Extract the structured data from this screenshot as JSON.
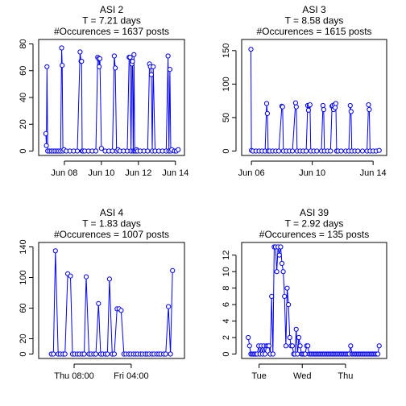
{
  "chart_data": [
    {
      "type": "line",
      "title_lines": [
        "ASI 2",
        "T =  7.21  days",
        "#Occurences =  1637  posts"
      ],
      "ylim": [
        0,
        80
      ],
      "y_ticks": [
        0,
        20,
        40,
        60,
        80
      ],
      "xlim": [
        6.85,
        14.25
      ],
      "x_ticks": [
        {
          "v": 8,
          "label": "Jun 08"
        },
        {
          "v": 10,
          "label": "Jun 10"
        },
        {
          "v": 12,
          "label": "Jun 12"
        },
        {
          "v": 14,
          "label": "Jun 14"
        }
      ],
      "series": [
        {
          "color": "#0000ff",
          "marker": "open-circle",
          "line": true,
          "x": [
            7.0,
            7.03,
            7.06,
            7.1,
            7.2,
            7.3,
            7.4,
            7.5,
            7.6,
            7.7,
            7.8,
            7.85,
            7.88,
            7.92,
            7.98,
            8.1,
            8.3,
            8.5,
            8.7,
            8.85,
            8.9,
            8.93,
            8.96,
            9.0,
            9.1,
            9.3,
            9.5,
            9.7,
            9.8,
            9.85,
            9.88,
            9.92,
            10.0,
            10.2,
            10.4,
            10.6,
            10.7,
            10.75,
            10.82,
            10.9,
            11.0,
            11.2,
            11.4,
            11.5,
            11.55,
            11.6,
            11.65,
            11.68,
            11.72,
            11.76,
            11.8,
            11.85,
            11.9,
            11.95,
            12.1,
            12.3,
            12.5,
            12.6,
            12.65,
            12.7,
            12.75,
            12.8,
            12.9,
            13.1,
            13.3,
            13.5,
            13.6,
            13.65,
            13.7,
            13.75,
            13.8,
            13.95,
            14.05,
            14.15
          ],
          "y": [
            13,
            4,
            63,
            0,
            0,
            0,
            0,
            0,
            0,
            0,
            0,
            77,
            64,
            0,
            1,
            0,
            0,
            0,
            0,
            74,
            67,
            67,
            0,
            0,
            0,
            0,
            0,
            0,
            70,
            69,
            63,
            69,
            2,
            0,
            0,
            0,
            71,
            62,
            0,
            1,
            0,
            0,
            0,
            70,
            70,
            0,
            65,
            67,
            0,
            72,
            0,
            0,
            1,
            0,
            0,
            0,
            0,
            65,
            63,
            57,
            0,
            63,
            0,
            0,
            0,
            0,
            71,
            0,
            61,
            0,
            1,
            0,
            0,
            1
          ]
        }
      ]
    },
    {
      "type": "line",
      "title_lines": [
        "ASI 3",
        "T =  8.58  days",
        "#Occurences =  1615  posts"
      ],
      "ylim": [
        0,
        160
      ],
      "y_ticks": [
        0,
        50,
        100,
        150
      ],
      "xlim": [
        5.65,
        14.6
      ],
      "x_ticks": [
        {
          "v": 6,
          "label": "Jun 06"
        },
        {
          "v": 10,
          "label": "Jun 10"
        },
        {
          "v": 14,
          "label": "Jun 14"
        }
      ],
      "series": [
        {
          "color": "#0000ff",
          "marker": "open-circle",
          "line": true,
          "x": [
            5.97,
            6.0,
            6.1,
            6.3,
            6.5,
            6.7,
            6.9,
            7.0,
            7.05,
            7.1,
            7.2,
            7.4,
            7.6,
            7.8,
            8.0,
            8.05,
            8.1,
            8.3,
            8.5,
            8.7,
            8.9,
            8.95,
            9.0,
            9.2,
            9.4,
            9.6,
            9.7,
            9.75,
            9.8,
            9.85,
            9.9,
            10.1,
            10.3,
            10.6,
            10.7,
            10.75,
            10.8,
            11.0,
            11.2,
            11.3,
            11.35,
            11.4,
            11.45,
            11.5,
            11.55,
            11.6,
            11.7,
            11.9,
            12.2,
            12.4,
            12.5,
            12.55,
            12.6,
            12.8,
            13.0,
            13.3,
            13.6,
            13.7,
            13.75,
            13.8,
            14.0,
            14.2,
            14.4
          ],
          "y": [
            152,
            1,
            0,
            0,
            0,
            0,
            0,
            71,
            56,
            0,
            0,
            0,
            0,
            0,
            67,
            66,
            0,
            0,
            0,
            0,
            72,
            66,
            0,
            0,
            0,
            0,
            68,
            61,
            68,
            69,
            0,
            0,
            0,
            0,
            68,
            62,
            0,
            0,
            0,
            67,
            68,
            62,
            69,
            65,
            71,
            0,
            0,
            0,
            0,
            0,
            68,
            59,
            0,
            0,
            0,
            0,
            0,
            69,
            62,
            0,
            0,
            0,
            1
          ]
        }
      ]
    },
    {
      "type": "line",
      "title_lines": [
        "ASI 4",
        "T =  1.83  days",
        "#Occurences =  1007  posts"
      ],
      "ylim": [
        0,
        140
      ],
      "y_ticks": [
        0,
        20,
        60,
        100,
        140
      ],
      "xlim": [
        -0.12,
        1.88
      ],
      "x_ticks": [
        {
          "v": 0.333,
          "label": "Thu 08:00"
        },
        {
          "v": 1.167,
          "label": "Fri 04:00"
        }
      ],
      "series": [
        {
          "color": "#0000ff",
          "marker": "open-circle",
          "line": true,
          "x": [
            0.0,
            0.03,
            0.06,
            0.1,
            0.13,
            0.17,
            0.2,
            0.24,
            0.28,
            0.31,
            0.34,
            0.38,
            0.41,
            0.45,
            0.48,
            0.51,
            0.55,
            0.58,
            0.62,
            0.65,
            0.69,
            0.72,
            0.75,
            0.79,
            0.82,
            0.85,
            0.89,
            0.92,
            0.96,
            0.99,
            1.02,
            1.06,
            1.09,
            1.13,
            1.16,
            1.2,
            1.23,
            1.26,
            1.3,
            1.33,
            1.37,
            1.4,
            1.43,
            1.47,
            1.5,
            1.54,
            1.57,
            1.6,
            1.64,
            1.67,
            1.71,
            1.74,
            1.77
          ],
          "y": [
            0,
            0,
            135,
            0,
            0,
            0,
            0,
            105,
            102,
            0,
            0,
            0,
            0,
            0,
            0,
            101,
            0,
            0,
            0,
            0,
            66,
            0,
            0,
            0,
            0,
            98,
            0,
            0,
            59,
            59,
            57,
            0,
            0,
            0,
            0,
            0,
            0,
            0,
            0,
            0,
            0,
            0,
            0,
            0,
            0,
            0,
            0,
            0,
            0,
            0,
            62,
            0,
            109
          ]
        }
      ]
    },
    {
      "type": "line",
      "title_lines": [
        "ASI 39",
        "T =  2.92  days",
        "#Occurences =  135  posts"
      ],
      "ylim": [
        0,
        13
      ],
      "y_ticks": [
        0,
        2,
        4,
        6,
        8,
        10,
        12
      ],
      "xlim": [
        -0.3,
        2.85
      ],
      "x_ticks": [
        {
          "v": 0,
          "label": "Tue"
        },
        {
          "v": 1,
          "label": "Wed"
        },
        {
          "v": 2,
          "label": "Thu"
        }
      ],
      "series": [
        {
          "color": "#0000ff",
          "marker": "open-circle",
          "line": true,
          "x": [
            -0.25,
            -0.22,
            -0.19,
            -0.16,
            -0.13,
            -0.1,
            -0.07,
            -0.04,
            -0.01,
            0.02,
            0.05,
            0.08,
            0.11,
            0.14,
            0.17,
            0.2,
            0.23,
            0.26,
            0.29,
            0.32,
            0.35,
            0.38,
            0.41,
            0.44,
            0.47,
            0.5,
            0.53,
            0.56,
            0.59,
            0.62,
            0.65,
            0.68,
            0.71,
            0.74,
            0.77,
            0.8,
            0.83,
            0.86,
            0.89,
            0.92,
            0.95,
            0.98,
            1.01,
            1.04,
            1.07,
            1.1,
            1.13,
            1.16,
            1.19,
            1.22,
            1.25,
            1.28,
            1.31,
            1.34,
            1.37,
            1.4,
            1.43,
            1.46,
            1.49,
            1.52,
            1.55,
            1.58,
            1.61,
            1.64,
            1.67,
            1.7,
            1.73,
            1.76,
            1.79,
            1.82,
            1.85,
            1.88,
            1.91,
            1.94,
            1.97,
            2.0,
            2.03,
            2.06,
            2.09,
            2.12,
            2.15,
            2.18,
            2.21,
            2.24,
            2.27,
            2.3,
            2.33,
            2.36,
            2.39,
            2.42,
            2.45,
            2.48,
            2.51,
            2.54,
            2.57,
            2.6,
            2.63,
            2.66,
            2.69,
            2.72,
            2.75,
            2.78
          ],
          "y": [
            2,
            1,
            0,
            0,
            0,
            0,
            0,
            0,
            1,
            0,
            1,
            0,
            1,
            0,
            1,
            1,
            1,
            0,
            7,
            0,
            13,
            13,
            10,
            13,
            12,
            13,
            11,
            10,
            7,
            1,
            8,
            6,
            2,
            1,
            1,
            0,
            0,
            3,
            0,
            2,
            1,
            0,
            0,
            0,
            0,
            1,
            1,
            0,
            0,
            0,
            0,
            0,
            0,
            0,
            0,
            0,
            0,
            0,
            0,
            0,
            0,
            0,
            0,
            0,
            0,
            0,
            0,
            0,
            0,
            0,
            0,
            0,
            0,
            0,
            0,
            0,
            0,
            0,
            0,
            1,
            0,
            0,
            0,
            0,
            0,
            0,
            0,
            0,
            0,
            0,
            0,
            0,
            0,
            0,
            0,
            0,
            0,
            0,
            0,
            0,
            0,
            1
          ]
        }
      ]
    }
  ]
}
